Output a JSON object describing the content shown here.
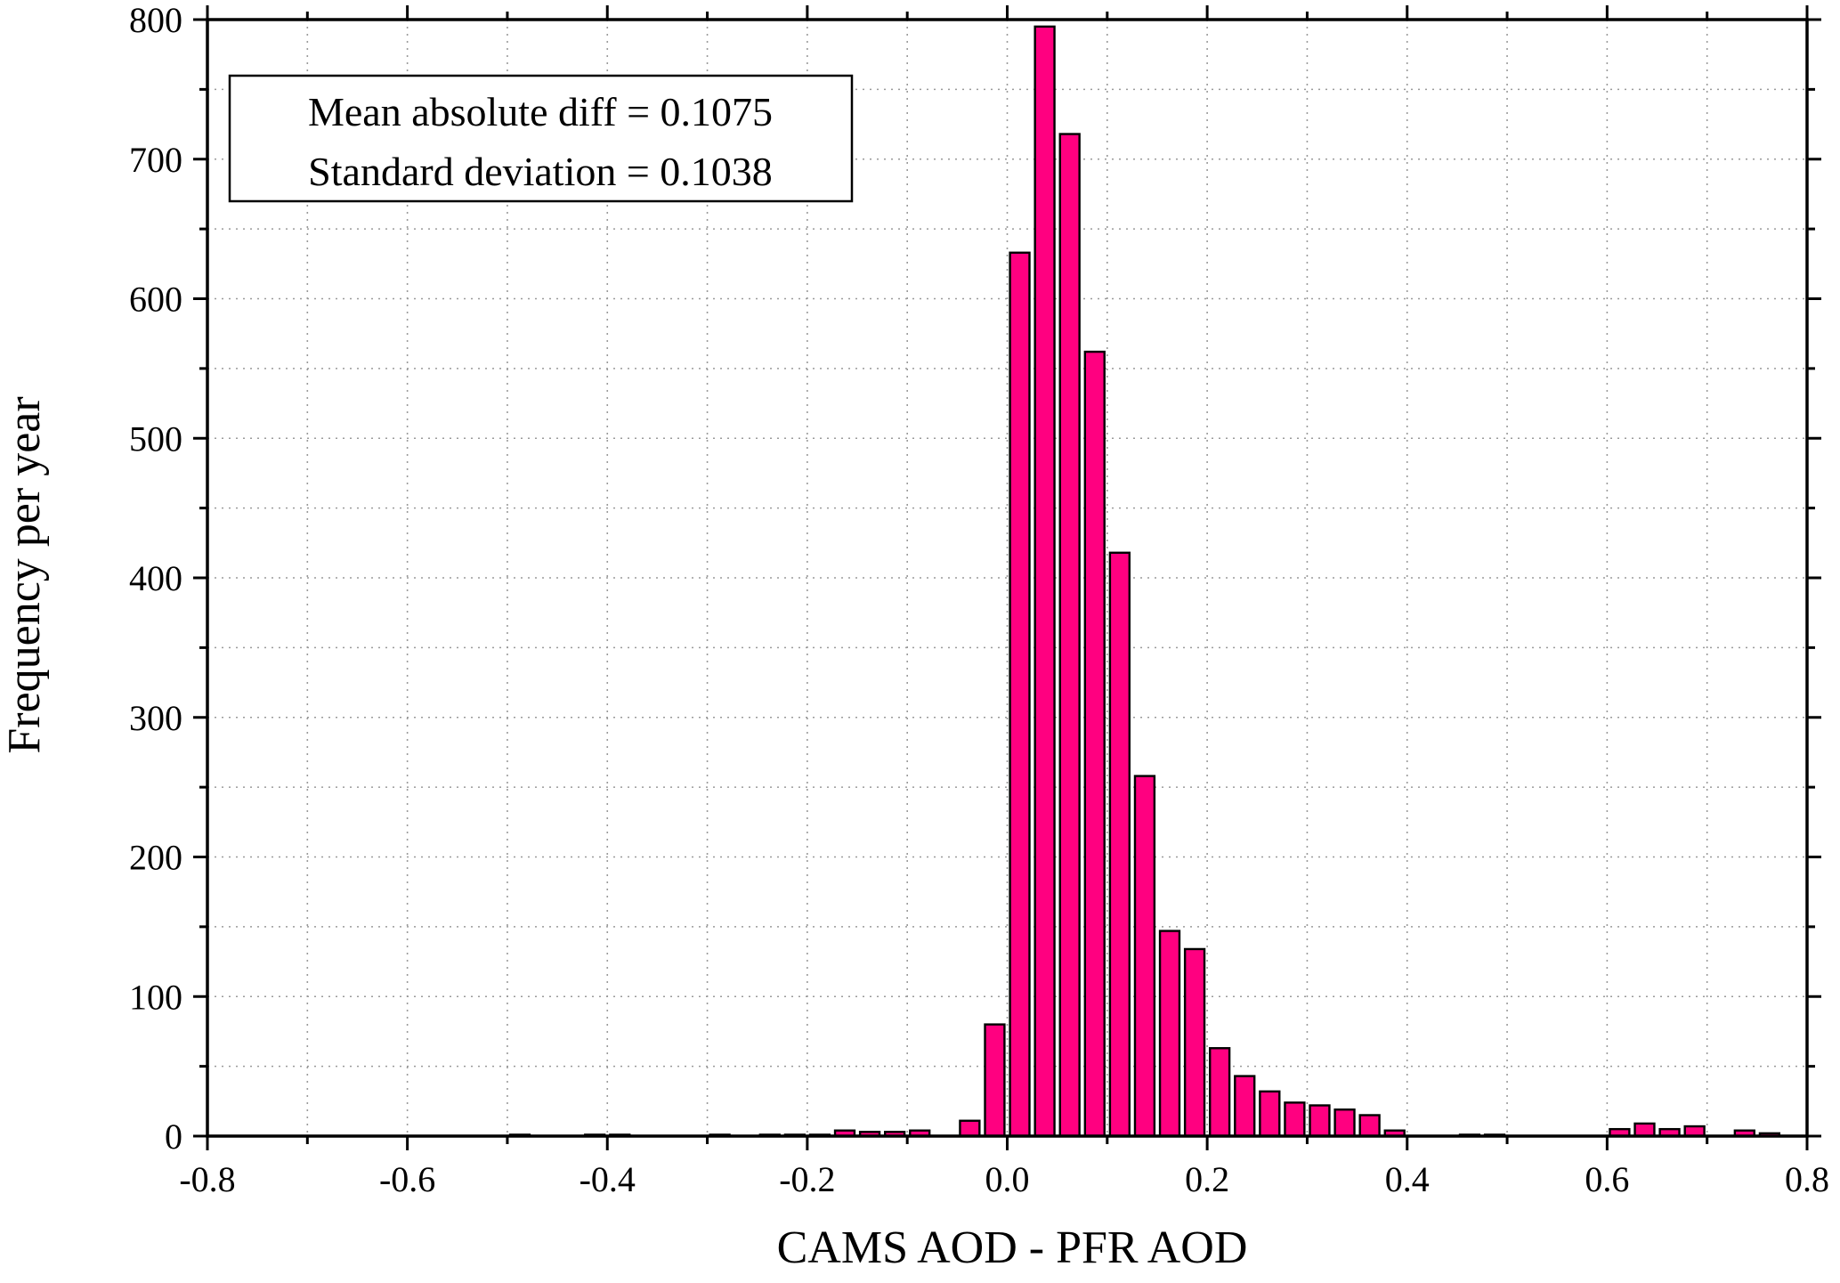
{
  "chart_data": {
    "type": "bar",
    "xlabel": "CAMS AOD - PFR AOD",
    "ylabel": "Frequency per year",
    "xlim": [
      -0.8,
      0.8
    ],
    "ylim": [
      0,
      800
    ],
    "x_ticks": [
      -0.8,
      -0.6,
      -0.4,
      -0.2,
      0.0,
      0.2,
      0.4,
      0.6,
      0.8
    ],
    "x_tick_labels": [
      "-0.8",
      "-0.6",
      "-0.4",
      "-0.2",
      "0.0",
      "0.2",
      "0.4",
      "0.6",
      "0.8"
    ],
    "y_ticks": [
      0,
      100,
      200,
      300,
      400,
      500,
      600,
      700,
      800
    ],
    "y_tick_labels": [
      "0",
      "100",
      "200",
      "300",
      "400",
      "500",
      "600",
      "700",
      "800"
    ],
    "grid": true,
    "bar_color": "#ff0080",
    "bin_width": 0.025,
    "x": [
      -0.7875,
      -0.7625,
      -0.7375,
      -0.7125,
      -0.6875,
      -0.6625,
      -0.6375,
      -0.6125,
      -0.5875,
      -0.5625,
      -0.5375,
      -0.5125,
      -0.4875,
      -0.4625,
      -0.4375,
      -0.4125,
      -0.3875,
      -0.3625,
      -0.3375,
      -0.3125,
      -0.2875,
      -0.2625,
      -0.2375,
      -0.2125,
      -0.1875,
      -0.1625,
      -0.1375,
      -0.1125,
      -0.0875,
      -0.0625,
      -0.0375,
      -0.0125,
      0.0125,
      0.0375,
      0.0625,
      0.0875,
      0.1125,
      0.1375,
      0.1625,
      0.1875,
      0.2125,
      0.2375,
      0.2625,
      0.2875,
      0.3125,
      0.3375,
      0.3625,
      0.3875,
      0.4125,
      0.4375,
      0.4625,
      0.4875,
      0.5125,
      0.5375,
      0.5625,
      0.5875,
      0.6125,
      0.6375,
      0.6625,
      0.6875,
      0.7125,
      0.7375,
      0.7625
    ],
    "values": [
      0,
      0,
      0,
      0,
      0,
      0,
      0,
      0,
      0,
      0,
      0,
      0,
      1,
      0,
      0,
      1,
      1,
      0,
      0,
      0,
      1,
      0,
      1,
      1,
      1,
      4,
      3,
      3,
      4,
      0,
      11,
      80,
      633,
      795,
      718,
      562,
      418,
      258,
      147,
      134,
      63,
      43,
      32,
      24,
      22,
      19,
      15,
      4,
      0,
      0,
      1,
      1,
      0,
      0,
      0,
      0,
      5,
      9,
      5,
      7,
      0,
      4,
      2
    ],
    "annotations": [
      "Mean absolute diff = 0.1075",
      "Standard deviation = 0.1038"
    ]
  }
}
